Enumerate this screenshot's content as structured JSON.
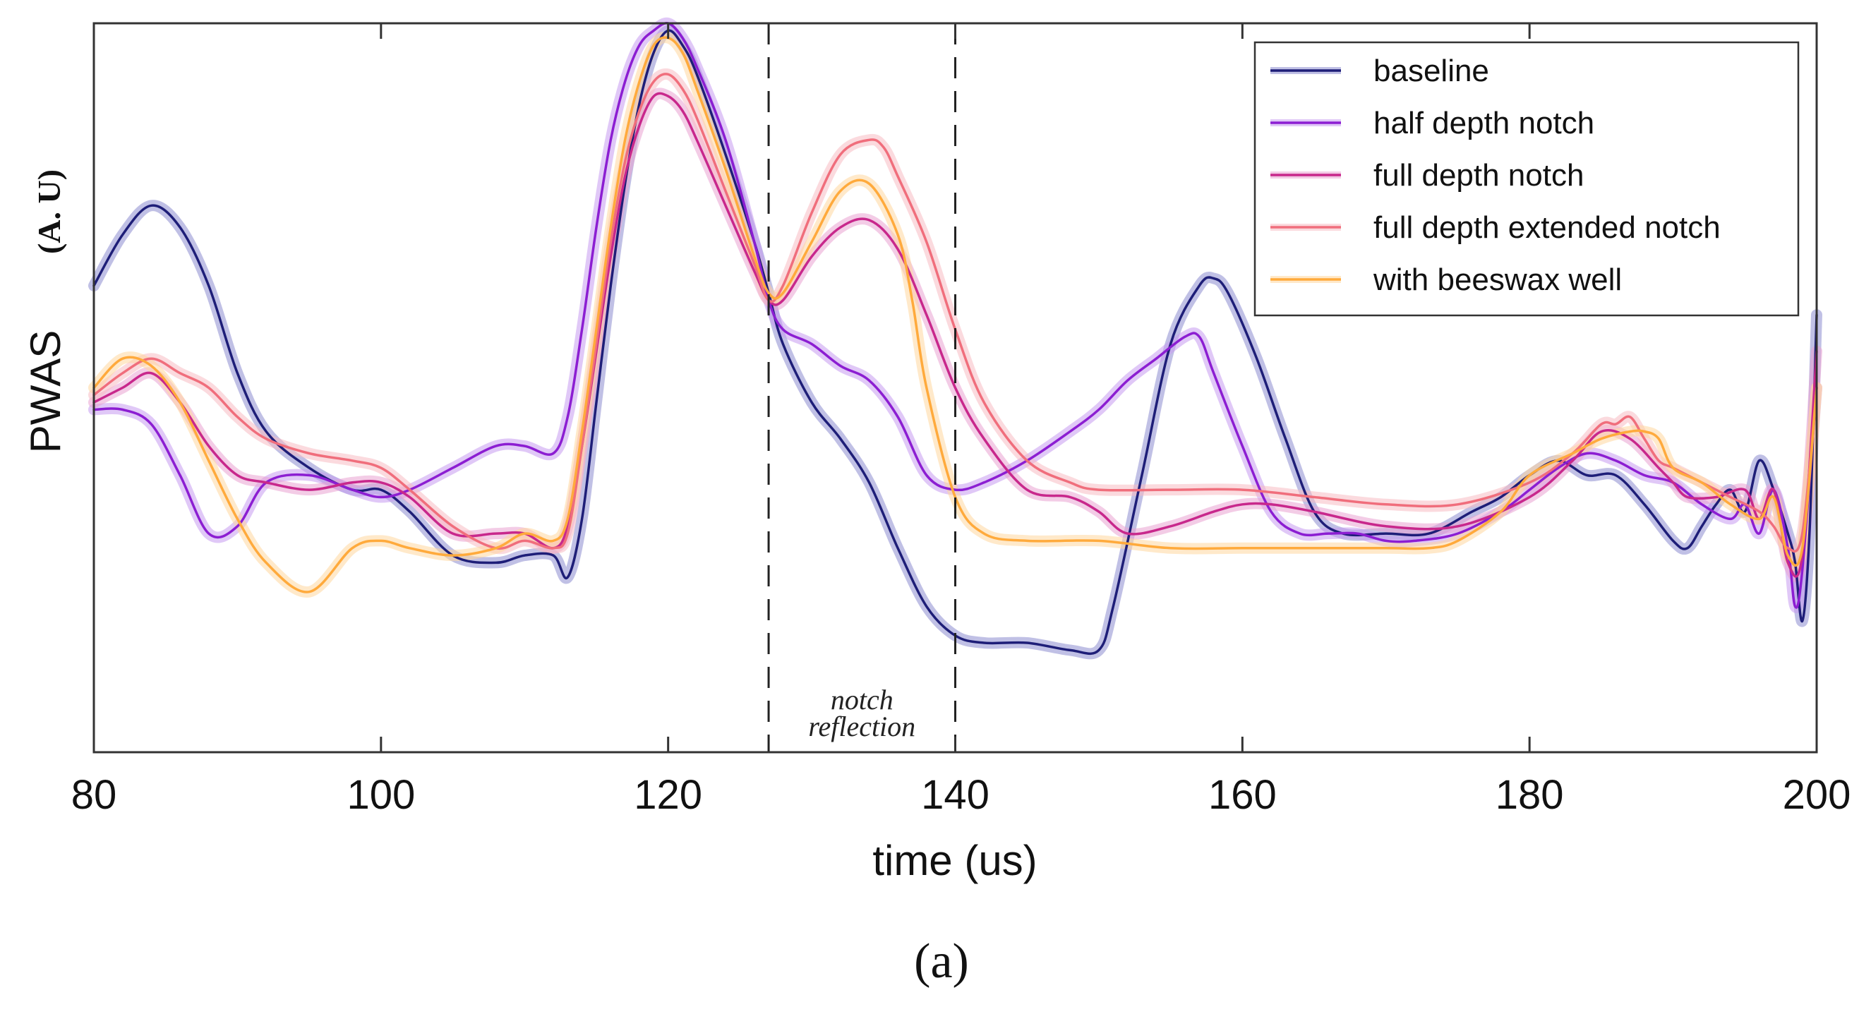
{
  "chart_data": {
    "type": "line",
    "title": "",
    "xlabel": "time (us)",
    "ylabel": "PWAS",
    "ylabel_unit": "(A. U)",
    "xlim": [
      80,
      200
    ],
    "ylim": [
      0,
      100
    ],
    "x_ticks": [
      80,
      100,
      120,
      140,
      160,
      180,
      200
    ],
    "y_ticks_shown": false,
    "grid": false,
    "legend_position": "top-right",
    "caption": "(a)",
    "annotations": [
      {
        "type": "vline",
        "x": 127,
        "style": "dashed"
      },
      {
        "type": "vline",
        "x": 140,
        "style": "dashed"
      },
      {
        "type": "text",
        "lines": [
          "notch",
          "reflection"
        ],
        "x": 133.5
      }
    ],
    "series": [
      {
        "name": "baseline",
        "color": "#1e1e78",
        "band_color": "#8c8cd0",
        "x": [
          80,
          82,
          84,
          86,
          88,
          90,
          92,
          95,
          98,
          100,
          102,
          105,
          108,
          110,
          112,
          113,
          114,
          115,
          116,
          117,
          118,
          119,
          120,
          121,
          122,
          124,
          126,
          127,
          128,
          130,
          132,
          134,
          136,
          138,
          140,
          142,
          145,
          148,
          150,
          151,
          153,
          155,
          157,
          158,
          159,
          161,
          163,
          165,
          167,
          170,
          173,
          176,
          178,
          180,
          182,
          184,
          186,
          188,
          190,
          191,
          192,
          193,
          194,
          195,
          196,
          197,
          198,
          198.5,
          199,
          199.5,
          200
        ],
        "y": [
          64,
          71,
          75,
          72,
          64,
          52,
          44,
          39,
          36,
          36,
          33,
          27,
          26,
          27,
          27,
          24,
          32,
          48,
          64,
          78,
          89,
          96,
          99,
          97,
          93,
          82,
          70,
          63,
          56,
          48,
          43,
          37,
          28,
          20,
          16,
          15,
          15,
          14,
          14,
          20,
          38,
          56,
          64,
          65,
          63,
          54,
          43,
          33,
          30,
          30,
          30,
          33,
          35,
          38,
          40,
          38,
          38,
          34,
          29,
          28,
          31,
          34,
          36,
          33,
          40,
          36,
          30,
          26,
          18,
          30,
          60
        ]
      },
      {
        "name": "half depth notch",
        "color": "#8c1ed2",
        "band_color": "#c79af0",
        "x": [
          80,
          82,
          84,
          86,
          88,
          90,
          92,
          95,
          98,
          100,
          102,
          105,
          108,
          110,
          112,
          113,
          114,
          115,
          116,
          117,
          118,
          119,
          120,
          121,
          122,
          124,
          126,
          127,
          128,
          130,
          132,
          134,
          136,
          138,
          140,
          142,
          145,
          148,
          150,
          152,
          154,
          156,
          157,
          158,
          160,
          162,
          164,
          166,
          168,
          170,
          172,
          175,
          178,
          180,
          182,
          184,
          186,
          188,
          190,
          192,
          194,
          195,
          196,
          197,
          198,
          198.5,
          199,
          200
        ],
        "y": [
          47,
          47,
          45,
          38,
          30,
          31,
          37,
          38,
          36,
          35,
          36,
          39,
          42,
          42,
          41,
          46,
          58,
          72,
          84,
          92,
          97,
          99,
          100,
          98,
          94,
          84,
          70,
          62,
          58,
          56,
          53,
          51,
          46,
          38,
          36,
          37,
          40,
          44,
          47,
          51,
          54,
          57,
          57,
          52,
          42,
          33,
          30,
          30,
          30,
          29,
          29,
          30,
          33,
          36,
          39,
          41,
          40,
          38,
          37,
          34,
          32,
          34,
          30,
          36,
          28,
          20,
          25,
          50
        ]
      },
      {
        "name": "full depth notch",
        "color": "#c8288c",
        "band_color": "#eaa3d2",
        "x": [
          80,
          82,
          84,
          86,
          88,
          90,
          92,
          95,
          98,
          100,
          102,
          105,
          108,
          110,
          112,
          113,
          114,
          115,
          116,
          117,
          118,
          119,
          120,
          121,
          122,
          124,
          126,
          127,
          128,
          130,
          132,
          134,
          136,
          138,
          140,
          142,
          145,
          148,
          150,
          152,
          155,
          158,
          160,
          162,
          165,
          170,
          175,
          180,
          183,
          185,
          187,
          189,
          190,
          191,
          193,
          195,
          196,
          197,
          198,
          199,
          200
        ],
        "y": [
          48,
          50,
          52,
          48,
          42,
          38,
          37,
          36,
          37,
          37,
          35,
          30,
          30,
          30,
          28,
          31,
          42,
          55,
          68,
          79,
          86,
          90,
          90,
          88,
          84,
          75,
          66,
          62,
          62,
          68,
          72,
          73,
          69,
          60,
          50,
          43,
          36,
          35,
          33,
          30,
          31,
          33,
          34,
          34,
          33,
          31,
          31,
          35,
          40,
          44,
          43,
          39,
          37,
          35,
          35,
          36,
          32,
          36,
          26,
          27,
          55
        ]
      },
      {
        "name": "full depth extended notch",
        "color": "#f06e7c",
        "band_color": "#f7bcc2",
        "x": [
          80,
          82,
          84,
          86,
          88,
          90,
          92,
          95,
          98,
          100,
          102,
          105,
          108,
          110,
          112,
          113,
          114,
          115,
          116,
          117,
          118,
          119,
          120,
          121,
          122,
          124,
          126,
          127,
          128,
          130,
          132,
          134,
          135,
          136,
          138,
          140,
          142,
          145,
          148,
          150,
          155,
          160,
          165,
          170,
          175,
          180,
          183,
          185,
          186,
          187,
          188,
          189,
          190,
          192,
          194,
          196,
          197,
          198,
          199,
          200
        ],
        "y": [
          49,
          52,
          54,
          52,
          50,
          46,
          43,
          41,
          40,
          39,
          36,
          31,
          28,
          29,
          28,
          30,
          42,
          56,
          70,
          81,
          88,
          92,
          93,
          91,
          87,
          77,
          67,
          62,
          64,
          74,
          82,
          84,
          83,
          79,
          70,
          58,
          48,
          40,
          37,
          36,
          36,
          36,
          35,
          34,
          34,
          37,
          41,
          45,
          45,
          46,
          43,
          40,
          39,
          37,
          35,
          33,
          31,
          28,
          30,
          50
        ]
      },
      {
        "name": "with beeswax well",
        "color": "#ffaa3c",
        "band_color": "#ffd79e",
        "x": [
          80,
          82,
          84,
          86,
          88,
          90,
          92,
          95,
          98,
          100,
          102,
          105,
          108,
          110,
          112,
          113,
          114,
          115,
          116,
          117,
          118,
          119,
          120,
          121,
          122,
          124,
          126,
          127,
          128,
          130,
          132,
          134,
          136,
          137,
          138,
          140,
          142,
          145,
          150,
          155,
          160,
          165,
          170,
          173,
          175,
          178,
          180,
          183,
          185,
          187,
          188,
          189,
          190,
          192,
          194,
          196,
          197,
          198,
          199,
          200
        ],
        "y": [
          50,
          54,
          53,
          48,
          40,
          32,
          26,
          22,
          28,
          29,
          28,
          27,
          28,
          30,
          29,
          32,
          44,
          58,
          72,
          84,
          92,
          97,
          98,
          96,
          91,
          80,
          68,
          63,
          63,
          70,
          77,
          78,
          71,
          62,
          50,
          35,
          30,
          29,
          29,
          28,
          28,
          28,
          28,
          28,
          29,
          33,
          38,
          41,
          43,
          44,
          44,
          43,
          39,
          37,
          34,
          32,
          35,
          27,
          28,
          50
        ]
      }
    ]
  }
}
